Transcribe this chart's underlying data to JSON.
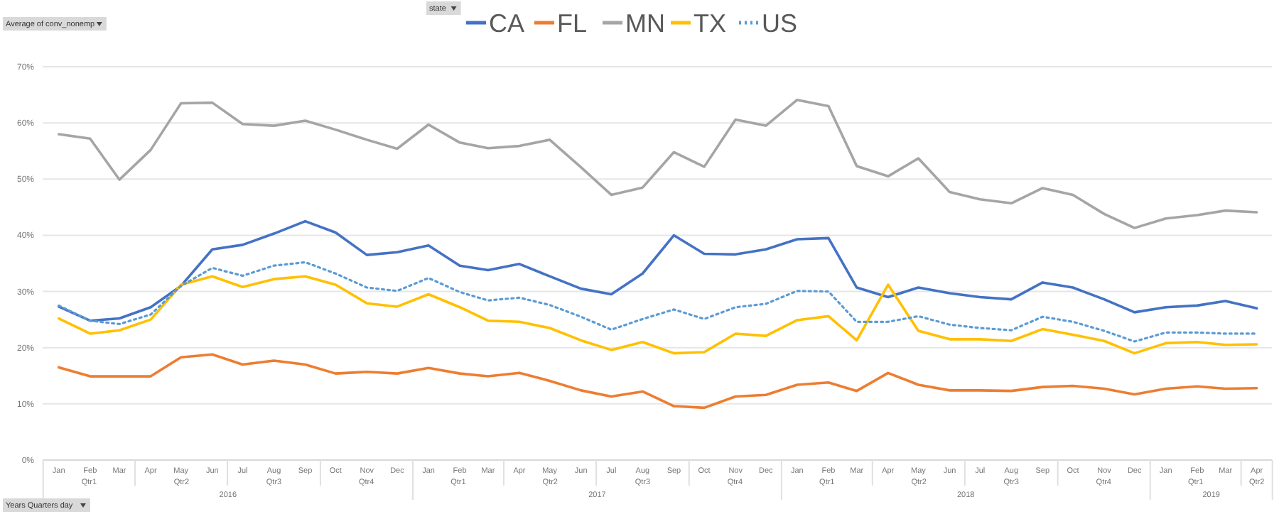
{
  "chart_data": {
    "type": "line",
    "ylabel": "Average of conv_nonemp",
    "legend_title": "state",
    "xlabel": "Years Quarters day",
    "x": [
      "2016-01",
      "2016-02",
      "2016-03",
      "2016-04",
      "2016-05",
      "2016-06",
      "2016-07",
      "2016-08",
      "2016-09",
      "2016-10",
      "2016-11",
      "2016-12",
      "2017-01",
      "2017-02",
      "2017-03",
      "2017-04",
      "2017-05",
      "2017-06",
      "2017-07",
      "2017-08",
      "2017-09",
      "2017-10",
      "2017-11",
      "2017-12",
      "2018-01",
      "2018-02",
      "2018-03",
      "2018-04",
      "2018-05",
      "2018-06",
      "2018-07",
      "2018-08",
      "2018-09",
      "2018-10",
      "2018-11",
      "2018-12",
      "2019-01",
      "2019-02",
      "2019-03",
      "2019-04"
    ],
    "xlim": [
      "2015-12-16",
      "2019-04-16"
    ],
    "xticks": [
      {
        "value": "2016-01",
        "label": "Jan"
      },
      {
        "value": "2016-02",
        "label": "Feb"
      },
      {
        "value": "2016-03",
        "label": "Mar"
      },
      {
        "value": "2016-04",
        "label": "Apr"
      },
      {
        "value": "2016-05",
        "label": "May"
      },
      {
        "value": "2016-06",
        "label": "Jun"
      },
      {
        "value": "2016-07",
        "label": "Jul"
      },
      {
        "value": "2016-08",
        "label": "Aug"
      },
      {
        "value": "2016-09",
        "label": "Sep"
      },
      {
        "value": "2016-10",
        "label": "Oct"
      },
      {
        "value": "2016-11",
        "label": "Nov"
      },
      {
        "value": "2016-12",
        "label": "Dec"
      },
      {
        "value": "2017-01",
        "label": "Jan"
      },
      {
        "value": "2017-02",
        "label": "Feb"
      },
      {
        "value": "2017-03",
        "label": "Mar"
      },
      {
        "value": "2017-04",
        "label": "Apr"
      },
      {
        "value": "2017-05",
        "label": "May"
      },
      {
        "value": "2017-06",
        "label": "Jun"
      },
      {
        "value": "2017-07",
        "label": "Jul"
      },
      {
        "value": "2017-08",
        "label": "Aug"
      },
      {
        "value": "2017-09",
        "label": "Sep"
      },
      {
        "value": "2017-10",
        "label": "Oct"
      },
      {
        "value": "2017-11",
        "label": "Nov"
      },
      {
        "value": "2017-12",
        "label": "Dec"
      },
      {
        "value": "2018-01",
        "label": "Jan"
      },
      {
        "value": "2018-02",
        "label": "Feb"
      },
      {
        "value": "2018-03",
        "label": "Mar"
      },
      {
        "value": "2018-04",
        "label": "Apr"
      },
      {
        "value": "2018-05",
        "label": "May"
      },
      {
        "value": "2018-06",
        "label": "Jun"
      },
      {
        "value": "2018-07",
        "label": "Jul"
      },
      {
        "value": "2018-08",
        "label": "Aug"
      },
      {
        "value": "2018-09",
        "label": "Sep"
      },
      {
        "value": "2018-10",
        "label": "Oct"
      },
      {
        "value": "2018-11",
        "label": "Nov"
      },
      {
        "value": "2018-12",
        "label": "Dec"
      },
      {
        "value": "2019-01",
        "label": "Jan"
      },
      {
        "value": "2019-02",
        "label": "Feb"
      },
      {
        "value": "2019-03",
        "label": "Mar"
      },
      {
        "value": "2019-04",
        "label": "Apr"
      }
    ],
    "ylim": [
      0,
      70
    ],
    "yticks": [
      {
        "value": 0,
        "label": "0%"
      },
      {
        "value": 10,
        "label": "10%"
      },
      {
        "value": 20,
        "label": "20%"
      },
      {
        "value": 30,
        "label": "30%"
      },
      {
        "value": 40,
        "label": "40%"
      },
      {
        "value": 50,
        "label": "50%"
      },
      {
        "value": 60,
        "label": "60%"
      },
      {
        "value": 70,
        "label": "70%"
      }
    ],
    "grid": "y",
    "legend": "top",
    "marker": "none",
    "series": [
      {
        "name": "CA",
        "color": "#4472c4",
        "values": [
          27.3,
          24.8,
          25.2,
          27.2,
          31.0,
          37.5,
          38.3,
          40.3,
          42.5,
          40.5,
          36.5,
          37.0,
          38.2,
          34.6,
          33.8,
          34.9,
          32.7,
          30.5,
          29.5,
          33.2,
          40.0,
          36.7,
          36.6,
          37.5,
          39.3,
          39.5,
          30.7,
          29.0,
          30.7,
          29.7,
          29.0,
          28.6,
          31.6,
          30.7,
          28.6,
          26.3,
          27.2,
          27.5,
          28.3,
          27.0
        ]
      },
      {
        "name": "FL",
        "color": "#ed7d31",
        "values": [
          16.5,
          14.9,
          14.9,
          14.9,
          18.3,
          18.8,
          17.0,
          17.7,
          17.0,
          15.4,
          15.7,
          15.4,
          16.4,
          15.4,
          14.9,
          15.5,
          14.1,
          12.4,
          11.3,
          12.2,
          9.6,
          9.3,
          11.3,
          11.6,
          13.4,
          13.8,
          12.3,
          15.5,
          13.4,
          12.4,
          12.4,
          12.3,
          13.0,
          13.2,
          12.7,
          11.7,
          12.7,
          13.1,
          12.7,
          12.8
        ]
      },
      {
        "name": "MN",
        "color": "#a5a5a5",
        "values": [
          58.0,
          57.2,
          49.9,
          55.2,
          63.5,
          63.6,
          59.8,
          59.5,
          60.4,
          58.8,
          57.0,
          55.4,
          59.7,
          56.5,
          55.5,
          55.9,
          57.0,
          52.1,
          47.2,
          48.5,
          54.8,
          52.2,
          60.6,
          59.5,
          64.1,
          63.0,
          52.3,
          50.5,
          53.7,
          47.7,
          46.4,
          45.7,
          48.4,
          47.2,
          43.8,
          41.3,
          43.0,
          43.6,
          44.4,
          44.1
        ]
      },
      {
        "name": "TX",
        "color": "#ffc000",
        "values": [
          25.2,
          22.5,
          23.1,
          25.0,
          31.2,
          32.7,
          30.8,
          32.2,
          32.7,
          31.2,
          27.9,
          27.3,
          29.5,
          27.2,
          24.8,
          24.6,
          23.5,
          21.3,
          19.6,
          21.0,
          19.0,
          19.2,
          22.5,
          22.1,
          24.9,
          25.6,
          21.3,
          31.2,
          23.0,
          21.5,
          21.5,
          21.2,
          23.3,
          22.3,
          21.2,
          19.0,
          20.8,
          21.0,
          20.5,
          20.6
        ]
      },
      {
        "name": "US",
        "color": "#5b9bd5",
        "line_style": "dotted",
        "values": [
          27.5,
          24.8,
          24.2,
          25.9,
          31.0,
          34.2,
          32.8,
          34.6,
          35.2,
          33.2,
          30.7,
          30.1,
          32.4,
          29.9,
          28.4,
          28.9,
          27.6,
          25.5,
          23.2,
          25.1,
          26.8,
          25.1,
          27.2,
          27.8,
          30.1,
          30.0,
          24.6,
          24.6,
          25.6,
          24.1,
          23.5,
          23.1,
          25.5,
          24.6,
          23.0,
          21.1,
          22.7,
          22.7,
          22.5,
          22.5
        ]
      }
    ],
    "annotations": [
      "Qtr1",
      "Qtr2",
      "Qtr3",
      "Qtr4",
      "Qtr1",
      "Qtr2",
      "Qtr3",
      "Qtr4",
      "Qtr1",
      "Qtr2",
      "Qtr3",
      "Qtr4",
      "Qtr1",
      "Qtr2",
      "2016",
      "2017",
      "2018",
      "2019"
    ]
  }
}
